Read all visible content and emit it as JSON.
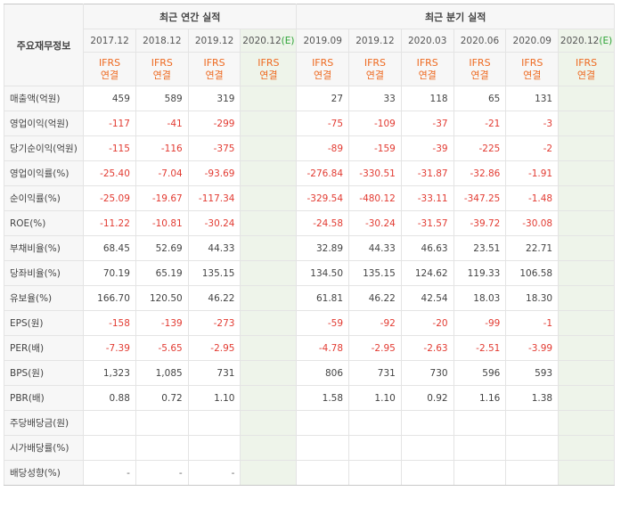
{
  "header": {
    "corner_label": "주요재무정보",
    "annual_group": "최근 연간 실적",
    "quarter_group": "최근 분기 실적",
    "annual_dates": [
      "2017.12",
      "2018.12",
      "2019.12",
      "2020.12"
    ],
    "quarter_dates": [
      "2019.09",
      "2019.12",
      "2020.03",
      "2020.06",
      "2020.09",
      "2020.12"
    ],
    "estimate_suffix": "(E)",
    "ifrs_line1": "IFRS",
    "ifrs_line2": "연결"
  },
  "rows": [
    {
      "label": "매출액(억원)",
      "annual": [
        "459",
        "589",
        "319",
        ""
      ],
      "quarter": [
        "27",
        "33",
        "118",
        "65",
        "131",
        ""
      ]
    },
    {
      "label": "영업이익(억원)",
      "annual": [
        "-117",
        "-41",
        "-299",
        ""
      ],
      "quarter": [
        "-75",
        "-109",
        "-37",
        "-21",
        "-3",
        ""
      ]
    },
    {
      "label": "당기순이익(억원)",
      "annual": [
        "-115",
        "-116",
        "-375",
        ""
      ],
      "quarter": [
        "-89",
        "-159",
        "-39",
        "-225",
        "-2",
        ""
      ]
    },
    {
      "label": "영업이익률(%)",
      "annual": [
        "-25.40",
        "-7.04",
        "-93.69",
        ""
      ],
      "quarter": [
        "-276.84",
        "-330.51",
        "-31.87",
        "-32.86",
        "-1.91",
        ""
      ]
    },
    {
      "label": "순이익률(%)",
      "annual": [
        "-25.09",
        "-19.67",
        "-117.34",
        ""
      ],
      "quarter": [
        "-329.54",
        "-480.12",
        "-33.11",
        "-347.25",
        "-1.48",
        ""
      ]
    },
    {
      "label": "ROE(%)",
      "annual": [
        "-11.22",
        "-10.81",
        "-30.24",
        ""
      ],
      "quarter": [
        "-24.58",
        "-30.24",
        "-31.57",
        "-39.72",
        "-30.08",
        ""
      ]
    },
    {
      "label": "부채비율(%)",
      "annual": [
        "68.45",
        "52.69",
        "44.33",
        ""
      ],
      "quarter": [
        "32.89",
        "44.33",
        "46.63",
        "23.51",
        "22.71",
        ""
      ]
    },
    {
      "label": "당좌비율(%)",
      "annual": [
        "70.19",
        "65.19",
        "135.15",
        ""
      ],
      "quarter": [
        "134.50",
        "135.15",
        "124.62",
        "119.33",
        "106.58",
        ""
      ]
    },
    {
      "label": "유보율(%)",
      "annual": [
        "166.70",
        "120.50",
        "46.22",
        ""
      ],
      "quarter": [
        "61.81",
        "46.22",
        "42.54",
        "18.03",
        "18.30",
        ""
      ]
    },
    {
      "label": "EPS(원)",
      "annual": [
        "-158",
        "-139",
        "-273",
        ""
      ],
      "quarter": [
        "-59",
        "-92",
        "-20",
        "-99",
        "-1",
        ""
      ]
    },
    {
      "label": "PER(배)",
      "annual": [
        "-7.39",
        "-5.65",
        "-2.95",
        ""
      ],
      "quarter": [
        "-4.78",
        "-2.95",
        "-2.63",
        "-2.51",
        "-3.99",
        ""
      ]
    },
    {
      "label": "BPS(원)",
      "annual": [
        "1,323",
        "1,085",
        "731",
        ""
      ],
      "quarter": [
        "806",
        "731",
        "730",
        "596",
        "593",
        ""
      ]
    },
    {
      "label": "PBR(배)",
      "annual": [
        "0.88",
        "0.72",
        "1.10",
        ""
      ],
      "quarter": [
        "1.58",
        "1.10",
        "0.92",
        "1.16",
        "1.38",
        ""
      ]
    },
    {
      "label": "주당배당금(원)",
      "annual": [
        "",
        "",
        "",
        ""
      ],
      "quarter": [
        "",
        "",
        "",
        "",
        "",
        ""
      ]
    },
    {
      "label": "시가배당률(%)",
      "annual": [
        "",
        "",
        "",
        ""
      ],
      "quarter": [
        "",
        "",
        "",
        "",
        "",
        ""
      ]
    },
    {
      "label": "배당성향(%)",
      "annual": [
        "-",
        "-",
        "-",
        ""
      ],
      "quarter": [
        "",
        "",
        "",
        "",
        "",
        ""
      ]
    }
  ],
  "colors": {
    "negative": "#e23b32",
    "ifrs": "#ee6a21",
    "estimate_bg": "#eef4ea",
    "estimate_mark": "#2aa233"
  }
}
